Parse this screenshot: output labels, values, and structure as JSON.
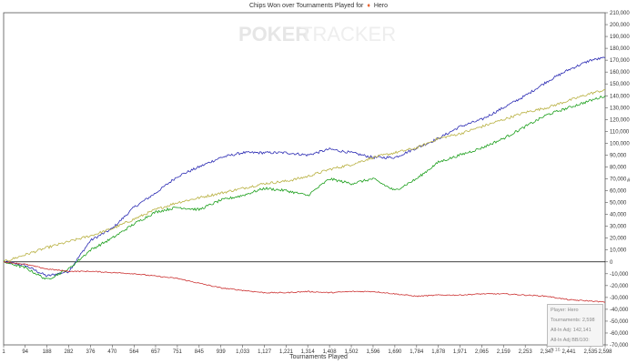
{
  "chart_title": {
    "prefix": "Chips Won over Tournaments Played for",
    "player": "Hero",
    "suit_icon": "diamond-icon"
  },
  "watermark": {
    "part1": "POKER",
    "part2": "TRACKER"
  },
  "infobox": {
    "player": "Player: Hero",
    "tournaments": "Tournaments: 2,598",
    "allin_adj": "All-In Adj: 142,141",
    "allin_bb": "All-In Adj BB/100: 9.16"
  },
  "chart_data": {
    "type": "line",
    "title": "Chips Won over Tournaments Played for Hero",
    "xlabel": "Tournaments Played",
    "ylabel": "#",
    "xlim": [
      1,
      2598
    ],
    "ylim": [
      -70000,
      210000
    ],
    "grid": false,
    "x_ticks": [
      "1",
      "94",
      "188",
      "282",
      "376",
      "470",
      "564",
      "657",
      "751",
      "845",
      "939",
      "1,033",
      "1,127",
      "1,221",
      "1,314",
      "1,408",
      "1,502",
      "1,596",
      "1,690",
      "1,784",
      "1,878",
      "1,971",
      "2,065",
      "2,159",
      "2,253",
      "2,347",
      "2,441",
      "2,535",
      "2,598"
    ],
    "y_ticks": [
      "210,000",
      "200,000",
      "190,000",
      "180,000",
      "170,000",
      "160,000",
      "150,000",
      "140,000",
      "130,000",
      "120,000",
      "110,000",
      "100,000",
      "90,000",
      "80,000",
      "70,000",
      "60,000",
      "50,000",
      "40,000",
      "30,000",
      "20,000",
      "10,000",
      "0",
      "-10,000",
      "-20,000",
      "-30,000",
      "-40,000",
      "-50,000",
      "-60,000",
      "-70,000"
    ],
    "series": [
      {
        "color": "#2b2bb3",
        "x": [
          1,
          94,
          188,
          282,
          376,
          470,
          564,
          657,
          751,
          845,
          939,
          1033,
          1127,
          1221,
          1314,
          1408,
          1502,
          1596,
          1690,
          1784,
          1878,
          1971,
          2065,
          2159,
          2253,
          2347,
          2441,
          2535,
          2598
        ],
        "values": [
          0,
          -3000,
          -12000,
          -8000,
          18000,
          28000,
          46000,
          58000,
          72000,
          80000,
          88000,
          92000,
          92000,
          92000,
          90000,
          95000,
          92000,
          88000,
          88000,
          96000,
          104000,
          114000,
          120000,
          130000,
          140000,
          152000,
          162000,
          170000,
          172000
        ]
      },
      {
        "color": "#b8b040",
        "x": [
          1,
          94,
          188,
          282,
          376,
          470,
          564,
          657,
          751,
          845,
          939,
          1033,
          1127,
          1221,
          1314,
          1408,
          1502,
          1596,
          1690,
          1784,
          1878,
          1971,
          2065,
          2159,
          2253,
          2347,
          2441,
          2535,
          2598
        ],
        "values": [
          0,
          6000,
          12000,
          17000,
          22000,
          28000,
          36000,
          44000,
          50000,
          54000,
          58000,
          62000,
          66000,
          68000,
          72000,
          78000,
          82000,
          88000,
          92000,
          96000,
          104000,
          108000,
          114000,
          120000,
          126000,
          130000,
          136000,
          142000,
          145000
        ]
      },
      {
        "color": "#1a9e1a",
        "x": [
          1,
          94,
          188,
          282,
          376,
          470,
          564,
          657,
          751,
          845,
          939,
          1033,
          1127,
          1221,
          1314,
          1408,
          1502,
          1596,
          1690,
          1784,
          1878,
          1971,
          2065,
          2159,
          2253,
          2347,
          2441,
          2535,
          2598
        ],
        "values": [
          0,
          -5000,
          -15000,
          -6000,
          10000,
          20000,
          32000,
          42000,
          46000,
          44000,
          52000,
          56000,
          62000,
          60000,
          56000,
          70000,
          66000,
          70000,
          60000,
          70000,
          84000,
          90000,
          96000,
          104000,
          114000,
          124000,
          130000,
          136000,
          140000
        ]
      },
      {
        "color": "#cc3333",
        "x": [
          1,
          94,
          188,
          282,
          376,
          470,
          564,
          657,
          751,
          845,
          939,
          1033,
          1127,
          1221,
          1314,
          1408,
          1502,
          1596,
          1690,
          1784,
          1878,
          1971,
          2065,
          2159,
          2253,
          2347,
          2441,
          2535,
          2598
        ],
        "values": [
          0,
          -2000,
          -6000,
          -8000,
          -8000,
          -9000,
          -10000,
          -12000,
          -14000,
          -18000,
          -22000,
          -24000,
          -26000,
          -26000,
          -25000,
          -26000,
          -25000,
          -25000,
          -27000,
          -29000,
          -28000,
          -28000,
          -27000,
          -27000,
          -28000,
          -29000,
          -32000,
          -33000,
          -34000
        ]
      }
    ]
  }
}
